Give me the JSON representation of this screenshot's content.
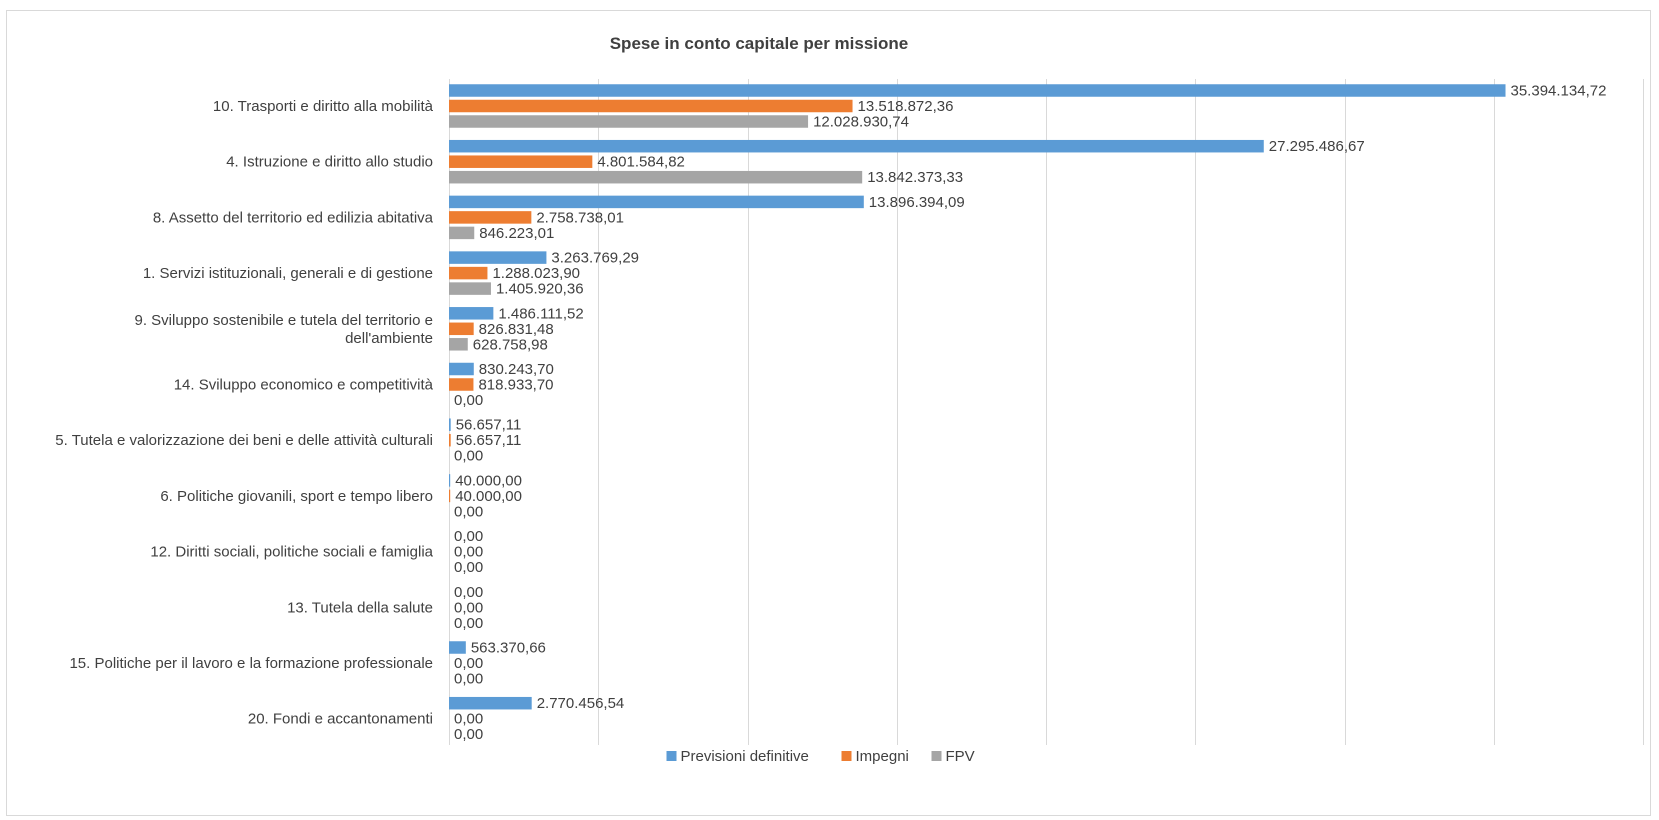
{
  "chart_data": {
    "type": "bar",
    "orientation": "horizontal",
    "title": "Spese in conto capitale per missione",
    "xlabel": "",
    "ylabel": "",
    "grid": true,
    "legend_position": "bottom",
    "categories": [
      [
        "10. Trasporti e diritto alla mobilità"
      ],
      [
        "4. Istruzione e diritto allo studio"
      ],
      [
        "8. Assetto del territorio ed edilizia abitativa"
      ],
      [
        "1. Servizi istituzionali, generali e di gestione"
      ],
      [
        "9. Sviluppo sostenibile e tutela del territorio e",
        "dell'ambiente"
      ],
      [
        "14. Sviluppo economico e competitività"
      ],
      [
        "5. Tutela e valorizzazione dei beni e delle attività culturali"
      ],
      [
        "6. Politiche giovanili, sport e tempo libero"
      ],
      [
        "12. Diritti sociali, politiche sociali e famiglia"
      ],
      [
        "13. Tutela della salute"
      ],
      [
        "15. Politiche per il lavoro e la formazione professionale"
      ],
      [
        "20. Fondi e accantonamenti"
      ]
    ],
    "series": [
      {
        "name": "Previsioni definitive",
        "color": "#5b9bd5",
        "values": [
          35394134.72,
          27295486.67,
          13896394.09,
          3263769.29,
          1486111.52,
          830243.7,
          56657.11,
          40000.0,
          0,
          0,
          563370.66,
          2770456.54
        ],
        "labels": [
          "35.394.134,72",
          "27.295.486,67",
          "13.896.394,09",
          "3.263.769,29",
          "1.486.111,52",
          "830.243,70",
          "56.657,11",
          "40.000,00",
          "0,00",
          "0,00",
          "563.370,66",
          "2.770.456,54"
        ]
      },
      {
        "name": "Impegni",
        "color": "#ed7d31",
        "values": [
          13518872.36,
          4801584.82,
          2758738.01,
          1288023.9,
          826831.48,
          818933.7,
          56657.11,
          40000.0,
          0,
          0,
          0,
          0
        ],
        "labels": [
          "13.518.872,36",
          "4.801.584,82",
          "2.758.738,01",
          "1.288.023,90",
          "826.831,48",
          "818.933,70",
          "56.657,11",
          "40.000,00",
          "0,00",
          "0,00",
          "0,00",
          "0,00"
        ]
      },
      {
        "name": "FPV",
        "color": "#a5a5a5",
        "values": [
          12028930.74,
          13842373.33,
          846223.01,
          1405920.36,
          628758.98,
          0,
          0,
          0,
          0,
          0,
          0,
          0
        ],
        "labels": [
          "12.028.930,74",
          "13.842.373,33",
          "846.223,01",
          "1.405.920,36",
          "628.758,98",
          "0,00",
          "0,00",
          "0,00",
          "0,00",
          "0,00",
          "0,00",
          "0,00"
        ]
      }
    ],
    "xlim": [
      0,
      40000000
    ],
    "x_major_unit": 5000000
  }
}
